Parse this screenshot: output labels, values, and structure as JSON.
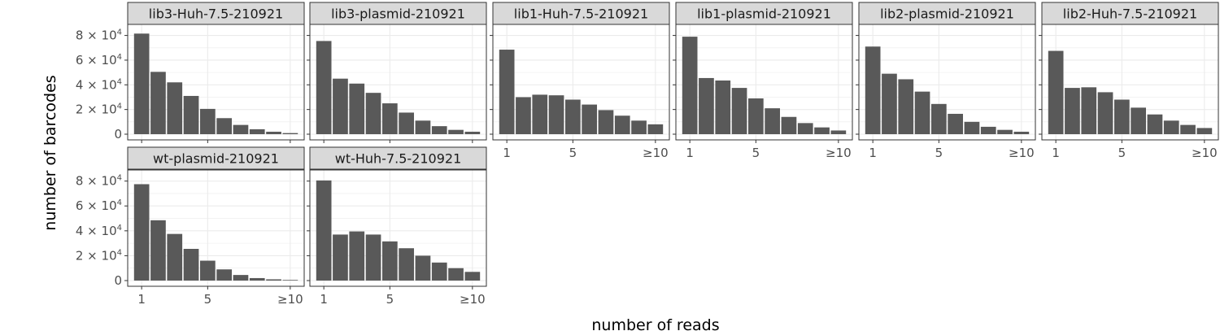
{
  "chart_data": {
    "type": "bar",
    "layout": "facet-grid",
    "xlabel": "number of reads",
    "ylabel": "number of barcodes",
    "categories": [
      "1",
      "2",
      "3",
      "4",
      "5",
      "6",
      "7",
      "8",
      "9",
      "≥10"
    ],
    "x_tick_labels": [
      "1",
      "5",
      "≥10"
    ],
    "ylim": [
      0,
      85000
    ],
    "y_ticks": [
      {
        "value": 0,
        "mantissa": "0",
        "exp": ""
      },
      {
        "value": 20000,
        "mantissa": "2 × 10",
        "exp": "4"
      },
      {
        "value": 40000,
        "mantissa": "4 × 10",
        "exp": "4"
      },
      {
        "value": 60000,
        "mantissa": "6 × 10",
        "exp": "4"
      },
      {
        "value": 80000,
        "mantissa": "8 × 10",
        "exp": "4"
      }
    ],
    "grid": true,
    "bar_color": "#595959",
    "panel_background": "#ffffff",
    "strip_background": "#d9d9d9",
    "gridline_color": "#ebebeb",
    "series": [
      {
        "name": "lib3-Huh-7.5-210921",
        "values": [
          81500,
          50500,
          42000,
          31000,
          20500,
          13000,
          7500,
          4000,
          2000,
          900
        ]
      },
      {
        "name": "lib3-plasmid-210921",
        "values": [
          75500,
          45000,
          41000,
          33500,
          25000,
          17500,
          11000,
          6500,
          3500,
          2000
        ]
      },
      {
        "name": "lib1-Huh-7.5-210921",
        "values": [
          68500,
          30000,
          32000,
          31500,
          28000,
          24000,
          19500,
          15000,
          11000,
          8000
        ]
      },
      {
        "name": "lib1-plasmid-210921",
        "values": [
          79000,
          45500,
          43500,
          37500,
          29000,
          21000,
          14000,
          9000,
          5500,
          3000
        ]
      },
      {
        "name": "lib2-plasmid-210921",
        "values": [
          71000,
          49000,
          44500,
          34500,
          24500,
          16500,
          10000,
          6000,
          3500,
          2000
        ]
      },
      {
        "name": "lib2-Huh-7.5-210921",
        "values": [
          67500,
          37500,
          38000,
          34000,
          28000,
          21500,
          16000,
          11000,
          7500,
          5000
        ]
      },
      {
        "name": "wt-plasmid-210921",
        "values": [
          77500,
          48500,
          37500,
          25500,
          16000,
          9000,
          4500,
          2000,
          1000,
          500
        ]
      },
      {
        "name": "wt-Huh-7.5-210921",
        "values": [
          80500,
          37000,
          39500,
          37000,
          31500,
          26000,
          20000,
          14500,
          10000,
          7000
        ]
      }
    ]
  }
}
